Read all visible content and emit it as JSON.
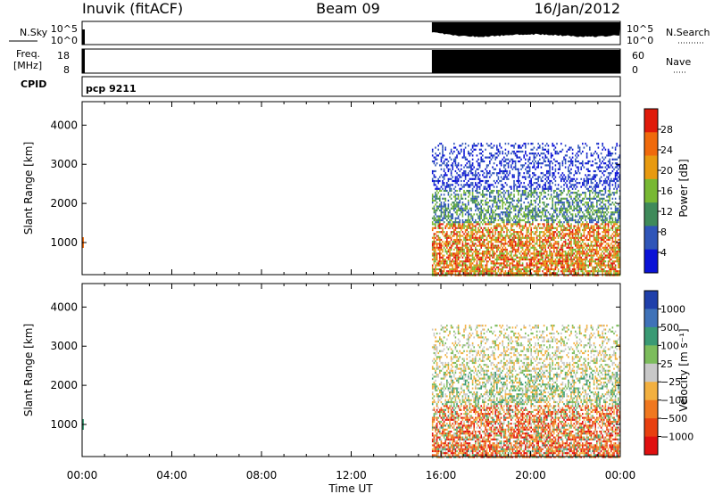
{
  "header": {
    "station": "Inuvik (fitACF)",
    "beam": "Beam 09",
    "date": "16/Jan/2012"
  },
  "chart_data": [
    {
      "type": "line",
      "panel": "noise",
      "left_label": "N.Sky",
      "right_label": "N.Search",
      "left_ticks": [
        "10^5",
        "10^0"
      ],
      "right_ticks": [
        "10^5",
        "10^0"
      ]
    },
    {
      "type": "line",
      "panel": "frequency",
      "left_label_line1": "Freq.",
      "left_label_line2": "[MHz]",
      "right_label": "Nave",
      "left_ticks": [
        18,
        8
      ],
      "right_ticks": [
        60,
        0
      ]
    },
    {
      "type": "table",
      "panel": "cpid",
      "label": "CPID",
      "value": "pcp 9211"
    },
    {
      "type": "heatmap",
      "panel": "power",
      "ylabel": "Slant Range [km]",
      "yticks": [
        1000,
        2000,
        3000,
        4000
      ],
      "ylim": [
        180,
        4600
      ],
      "colorbar_label": "Power [dB]",
      "colorbar_ticks": [
        4,
        8,
        12,
        16,
        20,
        24,
        28
      ],
      "colorbar_range": [
        0,
        32
      ],
      "colors": [
        "#0a12d6",
        "#2f55b8",
        "#3f8a5a",
        "#78b833",
        "#e89a10",
        "#f06a0c",
        "#e01a0a"
      ],
      "data_window_hours": [
        15.6,
        24
      ],
      "data_range_km": [
        180,
        3550
      ]
    },
    {
      "type": "heatmap",
      "panel": "velocity",
      "ylabel": "Slant Range [km]",
      "yticks": [
        1000,
        2000,
        3000,
        4000
      ],
      "ylim": [
        180,
        4600
      ],
      "colorbar_label": "Velocity [m s⁻¹]",
      "colorbar_ticks": [
        "1000",
        "500",
        "100",
        "25",
        "−25",
        "−100",
        "−500",
        "−1000"
      ],
      "colors": [
        "#1f3faa",
        "#3f72b8",
        "#3a9a74",
        "#7cbc5c",
        "#c8c8c8",
        "#f2b040",
        "#f07820",
        "#e84010",
        "#e01010"
      ],
      "data_window_hours": [
        15.6,
        24
      ],
      "data_range_km": [
        180,
        3550
      ]
    }
  ],
  "time_axis": {
    "label": "Time UT",
    "ticks": [
      "00:00",
      "04:00",
      "08:00",
      "12:00",
      "16:00",
      "20:00",
      "00:00"
    ],
    "range_hours": [
      0,
      24
    ]
  }
}
